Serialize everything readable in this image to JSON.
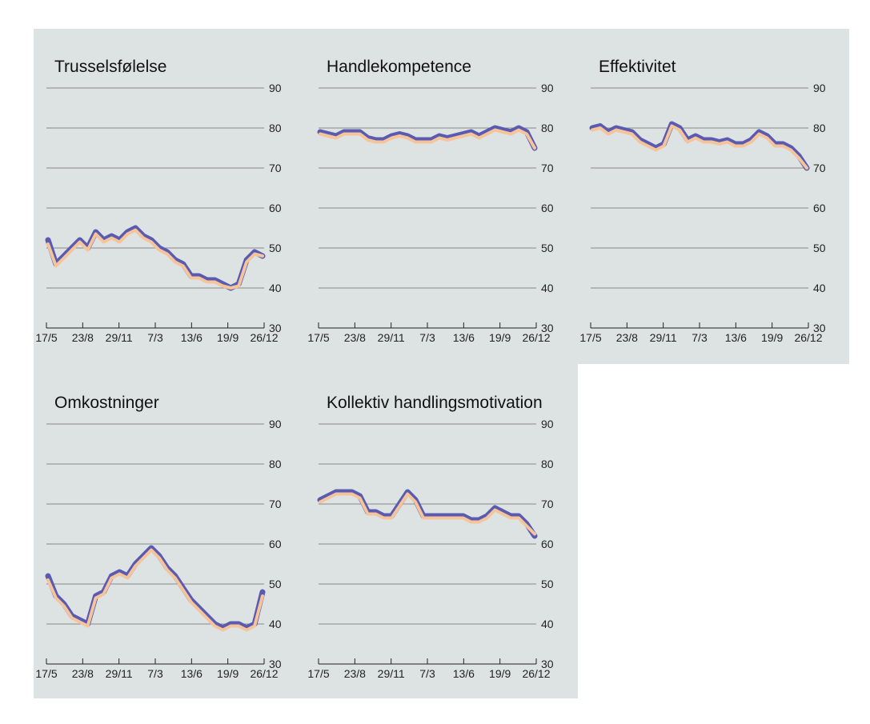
{
  "chart_data": [
    {
      "type": "line",
      "title": "Trusselsfølelse",
      "x_tick_labels": [
        "17/5",
        "23/8",
        "29/11",
        "7/3",
        "13/6",
        "19/9",
        "26/12"
      ],
      "y_ticks": [
        30,
        40,
        50,
        60,
        70,
        80,
        90
      ],
      "ylim": [
        30,
        90
      ],
      "grid": true,
      "series": [
        {
          "role": "band",
          "color": "#5a5ab0",
          "values": [
            52,
            46,
            48,
            50,
            52,
            50,
            54,
            52,
            53,
            52,
            54,
            55,
            53,
            52,
            50,
            49,
            47,
            46,
            43,
            43,
            42,
            42,
            41,
            40,
            41,
            47,
            49,
            48
          ]
        },
        {
          "role": "line",
          "color": "#f5c49a",
          "values": [
            51,
            45.5,
            47.5,
            49.5,
            51.5,
            49.5,
            53.5,
            51.5,
            52.5,
            51.5,
            53.5,
            54.5,
            52.5,
            51.5,
            49.5,
            48.5,
            46.5,
            45.5,
            42.5,
            42.5,
            41.5,
            41.5,
            40.5,
            40,
            40.5,
            46.5,
            48.5,
            48
          ]
        }
      ]
    },
    {
      "type": "line",
      "title": "Handlekompetence",
      "x_tick_labels": [
        "17/5",
        "23/8",
        "29/11",
        "7/3",
        "13/6",
        "19/9",
        "26/12"
      ],
      "y_ticks": [
        30,
        40,
        50,
        60,
        70,
        80,
        90
      ],
      "ylim": [
        30,
        90
      ],
      "grid": true,
      "series": [
        {
          "role": "band",
          "color": "#5a5ab0",
          "values": [
            79,
            78.5,
            78,
            79,
            79,
            79,
            77.5,
            77,
            77,
            78,
            78.5,
            78,
            77,
            77,
            77,
            78,
            77.5,
            78,
            78.5,
            79,
            78,
            79,
            80,
            79.5,
            79,
            80,
            79,
            75
          ]
        },
        {
          "role": "line",
          "color": "#f5c49a",
          "values": [
            78.5,
            78,
            77.5,
            78.5,
            78.5,
            78.5,
            77,
            76.5,
            76.5,
            77.5,
            78,
            77.5,
            76.5,
            76.5,
            76.5,
            77.5,
            77,
            77.5,
            78,
            78.5,
            77.5,
            78.5,
            79.5,
            79,
            78.5,
            79.5,
            78.5,
            75
          ]
        }
      ]
    },
    {
      "type": "line",
      "title": "Effektivitet",
      "x_tick_labels": [
        "17/5",
        "23/8",
        "29/11",
        "7/3",
        "13/6",
        "19/9",
        "26/12"
      ],
      "y_ticks": [
        30,
        40,
        50,
        60,
        70,
        80,
        90
      ],
      "ylim": [
        30,
        90
      ],
      "grid": true,
      "series": [
        {
          "role": "band",
          "color": "#5a5ab0",
          "values": [
            80,
            80.5,
            79,
            80,
            79.5,
            79,
            77,
            76,
            75,
            76,
            81,
            80,
            77,
            78,
            77,
            77,
            76.5,
            77,
            76,
            76,
            77,
            79,
            78,
            76,
            76,
            75,
            73,
            70
          ]
        },
        {
          "role": "line",
          "color": "#f5c49a",
          "values": [
            79.5,
            80,
            78.5,
            79.5,
            79,
            78.5,
            76.5,
            75.5,
            74.5,
            75.5,
            80.5,
            79.5,
            76.5,
            77.5,
            76.5,
            76.5,
            76,
            76.5,
            75.5,
            75.5,
            76.5,
            78.5,
            77.5,
            75.5,
            75.5,
            74.5,
            72.5,
            70
          ]
        }
      ]
    },
    {
      "type": "line",
      "title": "Omkostninger",
      "x_tick_labels": [
        "17/5",
        "23/8",
        "29/11",
        "7/3",
        "13/6",
        "19/9",
        "26/12"
      ],
      "y_ticks": [
        30,
        40,
        50,
        60,
        70,
        80,
        90
      ],
      "ylim": [
        30,
        90
      ],
      "grid": true,
      "series": [
        {
          "role": "band",
          "color": "#5a5ab0",
          "values": [
            52,
            47,
            45,
            42,
            41,
            40,
            47,
            48,
            52,
            53,
            52,
            55,
            57,
            59,
            57,
            54,
            52,
            49,
            46,
            44,
            42,
            40,
            39,
            40,
            40,
            39,
            40,
            48
          ]
        },
        {
          "role": "line",
          "color": "#f5c49a",
          "values": [
            51,
            46.5,
            44.5,
            41.5,
            40.5,
            39.5,
            46.5,
            47.5,
            51.5,
            52.5,
            51.5,
            54.5,
            56.5,
            58.5,
            56.5,
            53.5,
            51.5,
            48.5,
            45.5,
            43.5,
            41.5,
            39.5,
            38.5,
            39.5,
            39.5,
            38.5,
            39.5,
            47
          ]
        }
      ]
    },
    {
      "type": "line",
      "title": "Kollektiv handlingsmotivation",
      "x_tick_labels": [
        "17/5",
        "23/8",
        "29/11",
        "7/3",
        "13/6",
        "19/9",
        "26/12"
      ],
      "y_ticks": [
        30,
        40,
        50,
        60,
        70,
        80,
        90
      ],
      "ylim": [
        30,
        90
      ],
      "grid": true,
      "series": [
        {
          "role": "band",
          "color": "#5a5ab0",
          "values": [
            71,
            72,
            73,
            73,
            73,
            72,
            68,
            68,
            67,
            67,
            70,
            73,
            71,
            67,
            67,
            67,
            67,
            67,
            67,
            66,
            66,
            67,
            69,
            68,
            67,
            67,
            65,
            62
          ]
        },
        {
          "role": "line",
          "color": "#f5c49a",
          "values": [
            70.5,
            71.5,
            72.5,
            72.5,
            72.5,
            71.5,
            67.5,
            67.5,
            66.5,
            66.5,
            69.5,
            72.5,
            70.5,
            66.5,
            66.5,
            66.5,
            66.5,
            66.5,
            66.5,
            65.5,
            65.5,
            66.5,
            68.5,
            67.5,
            66.5,
            66.5,
            64.5,
            62.5
          ]
        }
      ]
    }
  ]
}
